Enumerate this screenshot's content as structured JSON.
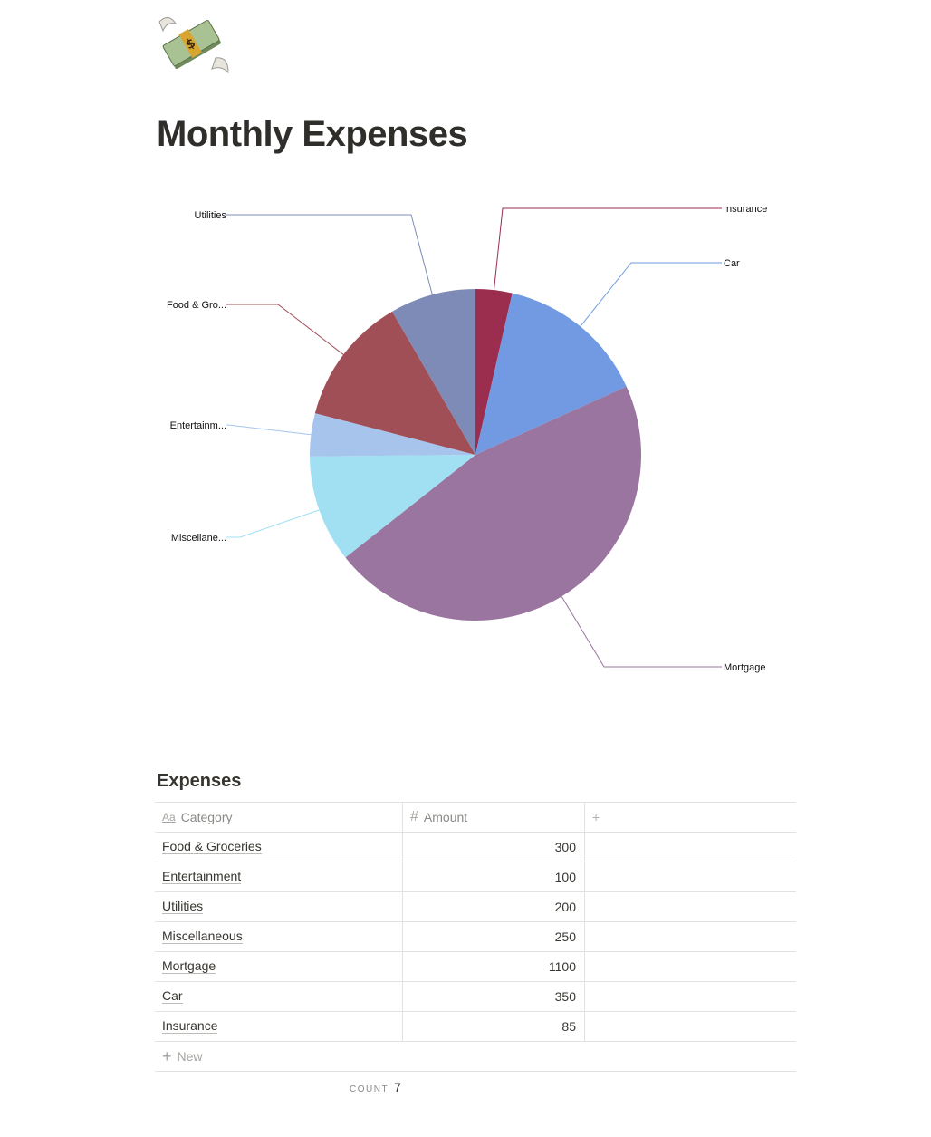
{
  "page": {
    "icon": "money-with-wings-icon",
    "title": "Monthly Expenses"
  },
  "chart_data": {
    "type": "pie",
    "slices": [
      {
        "label": "Insurance",
        "display": "Insurance",
        "value": 85,
        "color": "#9b2d4f"
      },
      {
        "label": "Car",
        "display": "Car",
        "value": 350,
        "color": "#729ae2"
      },
      {
        "label": "Mortgage",
        "display": "Mortgage",
        "value": 1100,
        "color": "#9a759f"
      },
      {
        "label": "Miscellaneous",
        "display": "Miscellane...",
        "value": 250,
        "color": "#a1dff2"
      },
      {
        "label": "Entertainment",
        "display": "Entertainm...",
        "value": 100,
        "color": "#a7c5ec"
      },
      {
        "label": "Food & Groceries",
        "display": "Food & Gro...",
        "value": 300,
        "color": "#a14f57"
      },
      {
        "label": "Utilities",
        "display": "Utilities",
        "value": 200,
        "color": "#7f8bb7"
      }
    ]
  },
  "database": {
    "title": "Expenses",
    "columns": {
      "category": "Category",
      "amount": "Amount",
      "add": "+"
    },
    "rows": [
      {
        "category": "Food & Groceries",
        "amount": "300"
      },
      {
        "category": "Entertainment",
        "amount": "100"
      },
      {
        "category": "Utilities",
        "amount": "200"
      },
      {
        "category": "Miscellaneous",
        "amount": "250"
      },
      {
        "category": "Mortgage",
        "amount": "1100"
      },
      {
        "category": "Car",
        "amount": "350"
      },
      {
        "category": "Insurance",
        "amount": "85"
      }
    ],
    "new_label": "New",
    "count_label": "COUNT",
    "count_value": "7"
  }
}
